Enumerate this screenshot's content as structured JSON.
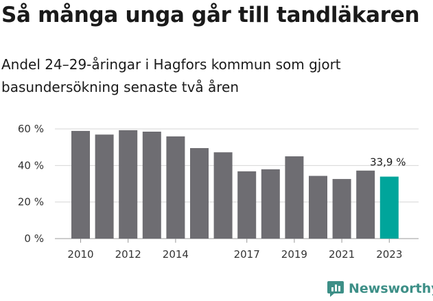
{
  "title": "Så många unga går till tandläkaren",
  "subtitle": "Andel 24–29-åringar i Hagfors kommun som gjort basundersökning senaste två åren",
  "brand": {
    "name": "Newsworthy",
    "logo_icon": "bar-chart-logo-icon"
  },
  "colors": {
    "bar": "#6e6d72",
    "highlight": "#00a59b",
    "grid": "#d6d6d6",
    "brand": "#3d8f87"
  },
  "chart_data": {
    "type": "bar",
    "categories": [
      "2010",
      "2011",
      "2012",
      "2013",
      "2014",
      "2015",
      "2016",
      "2017",
      "2018",
      "2019",
      "2020",
      "2021",
      "2022",
      "2023"
    ],
    "values": [
      58.9,
      56.9,
      59.3,
      58.5,
      55.9,
      49.5,
      47.2,
      36.8,
      37.9,
      45.0,
      34.3,
      32.6,
      37.2,
      33.9
    ],
    "tick_labels": [
      "2010",
      "2012",
      "2014",
      "2017",
      "2019",
      "2021",
      "2023"
    ],
    "y_ticks": [
      0,
      20,
      40,
      60
    ],
    "y_tick_labels": [
      "0 %",
      "20 %",
      "40 %",
      "60 %"
    ],
    "ylim": [
      0,
      60
    ],
    "highlight_index": 13,
    "data_label": "33,9 %",
    "grid": true
  }
}
